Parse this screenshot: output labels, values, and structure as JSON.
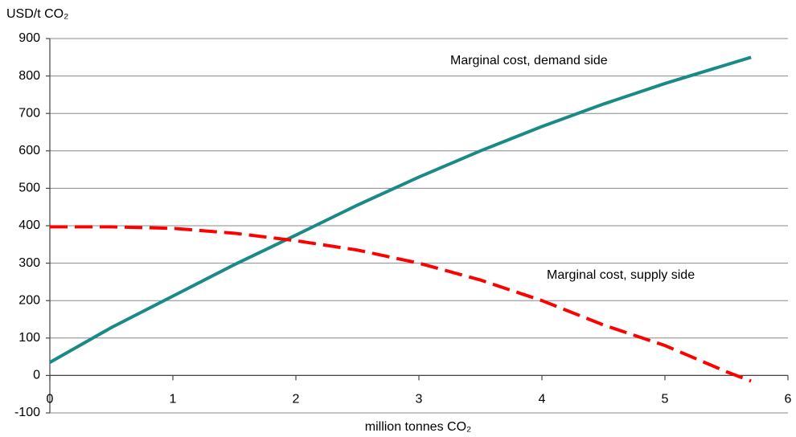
{
  "chart_data": {
    "type": "line",
    "ylabel": "USD/t CO₂",
    "xlabel": "million tonnes CO₂",
    "annotations": [
      "Marginal cost, demand side",
      "Marginal cost, supply side"
    ],
    "x": [
      0,
      0.5,
      1,
      1.5,
      2,
      2.5,
      3,
      3.5,
      4,
      4.5,
      5,
      5.5,
      5.7
    ],
    "series": [
      {
        "color": "#1a8a87",
        "style": "solid",
        "values": [
          35,
          128,
          212,
          296,
          375,
          455,
          530,
          600,
          665,
          725,
          780,
          830,
          850
        ]
      },
      {
        "color": "#ff0000",
        "style": "dashed",
        "values": [
          397,
          397,
          393,
          380,
          360,
          335,
          300,
          255,
          200,
          135,
          80,
          10,
          -15
        ]
      }
    ],
    "xlim": [
      0,
      6
    ],
    "xticks": [
      0,
      1,
      2,
      3,
      4,
      5,
      6
    ],
    "ylim": [
      -100,
      900
    ],
    "yticks": [
      -100,
      0,
      100,
      200,
      300,
      400,
      500,
      600,
      700,
      800,
      900
    ],
    "grid": true
  }
}
